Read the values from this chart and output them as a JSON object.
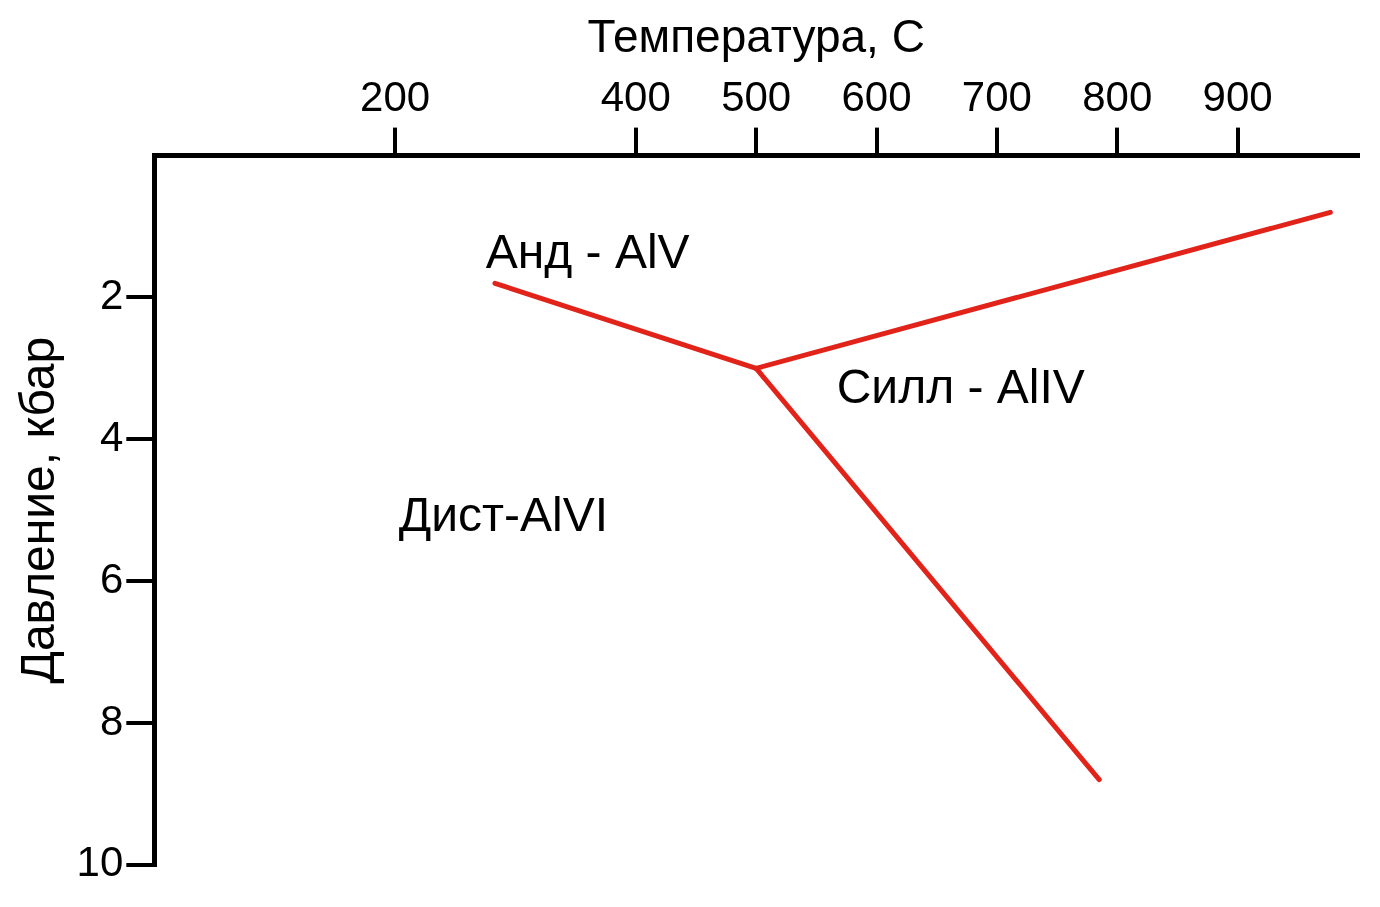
{
  "chart_data": {
    "type": "line",
    "xlabel": "Температура, С",
    "ylabel": "Давление, кбар",
    "xlim": [
      0,
      1000
    ],
    "xticks": [
      200,
      400,
      500,
      600,
      700,
      800,
      900
    ],
    "ylim": [
      10,
      0
    ],
    "yticks": [
      2,
      4,
      6,
      8,
      10
    ],
    "grid": false,
    "legend": false,
    "marker": "none",
    "line_style": "solid",
    "series": [
      {
        "color": "#e2231a",
        "x": [
          283,
          500
        ],
        "values": [
          1.8,
          3.0
        ]
      },
      {
        "color": "#e2231a",
        "x": [
          500,
          977
        ],
        "values": [
          3.0,
          0.8
        ]
      },
      {
        "color": "#e2231a",
        "x": [
          500,
          785
        ],
        "values": [
          3.0,
          8.8
        ]
      }
    ],
    "annotations": [
      "Анд - AlV",
      "Силл - AlIV",
      "Дист-AlVI"
    ]
  }
}
